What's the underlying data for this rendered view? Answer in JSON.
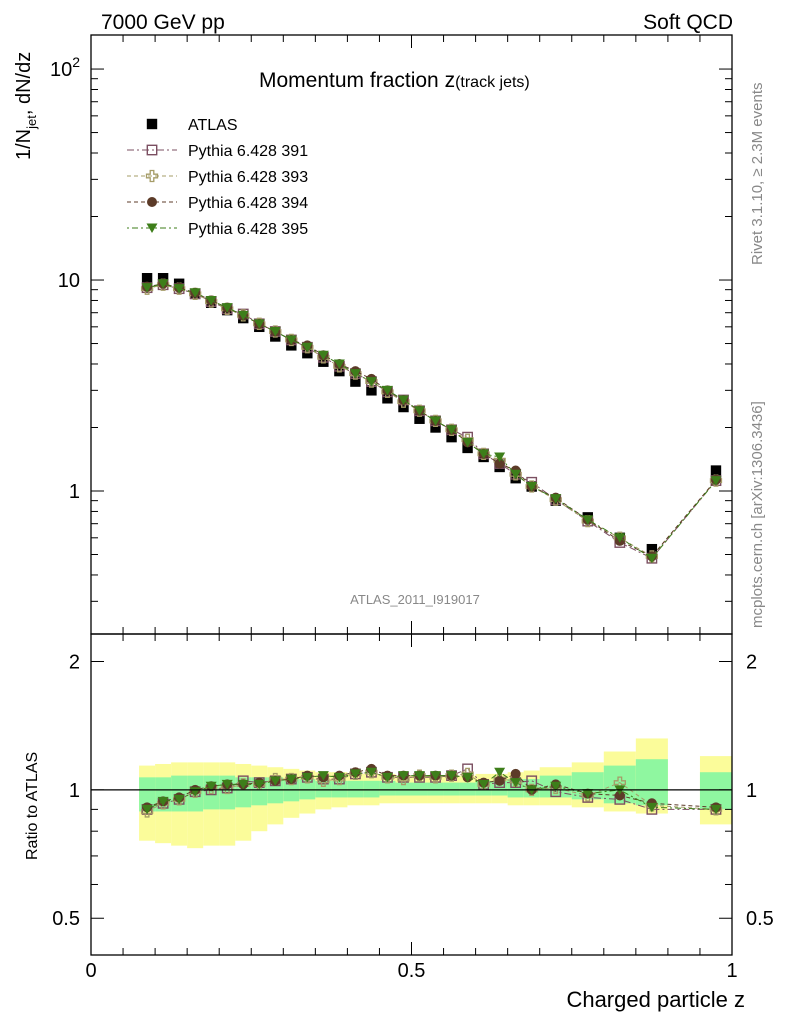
{
  "header": {
    "left": "7000 GeV pp",
    "right": "Soft QCD"
  },
  "side_labels": {
    "rivet": "Rivet 3.1.10, ≥ 2.3M events",
    "mcplots": "mcplots.cern.ch [arXiv:1306.3436]"
  },
  "watermark": "ATLAS_2011_I919017",
  "colors": {
    "atlas": "#000000",
    "p391": "#7b4f61",
    "p393": "#a59c67",
    "p394": "#5c3b28",
    "p395": "#3d7e1a",
    "band_inner": "#8ff7a0",
    "band_outer": "#fbfc9a"
  },
  "chart_data": [
    {
      "type": "scatter",
      "panel": "main",
      "title_main": "Momentum fraction z",
      "title_sub": "(track jets)",
      "ylabel_main": "1/N",
      "ylabel_sub": "jet",
      "ylabel_rest": ", dN/dz",
      "yscale": "log",
      "xlim": [
        0,
        1
      ],
      "ylim": [
        0.21,
        145
      ],
      "ytick_labels": [
        {
          "value": 100,
          "base": "10",
          "exp": "2"
        },
        {
          "value": 10,
          "base": "10",
          "exp": ""
        },
        {
          "value": 1,
          "base": "1",
          "exp": ""
        }
      ],
      "legend_position": "top-left",
      "x": [
        0.0875,
        0.1125,
        0.1375,
        0.1625,
        0.1875,
        0.2125,
        0.2375,
        0.2625,
        0.2875,
        0.3125,
        0.3375,
        0.3625,
        0.3875,
        0.4125,
        0.4375,
        0.4625,
        0.4875,
        0.5125,
        0.5375,
        0.5625,
        0.5875,
        0.6125,
        0.6375,
        0.6625,
        0.6875,
        0.725,
        0.775,
        0.825,
        0.875,
        0.975
      ],
      "series": [
        {
          "name": "ATLAS",
          "marker": "filled-square",
          "color_key": "atlas",
          "values": [
            10.2,
            10.2,
            9.6,
            8.6,
            7.8,
            7.2,
            6.6,
            6.0,
            5.4,
            4.9,
            4.5,
            4.1,
            3.7,
            3.3,
            3.0,
            2.75,
            2.5,
            2.2,
            2.0,
            1.8,
            1.6,
            1.45,
            1.3,
            1.15,
            1.05,
            0.9,
            0.75,
            0.6,
            0.53,
            1.25
          ]
        },
        {
          "name": "Pythia 6.428 391",
          "marker": "open-square",
          "color_key": "p391",
          "values": [
            9.2,
            9.5,
            9.1,
            8.6,
            7.9,
            7.3,
            6.9,
            6.2,
            5.7,
            5.2,
            4.8,
            4.3,
            3.9,
            3.6,
            3.3,
            2.95,
            2.7,
            2.4,
            2.15,
            1.95,
            1.8,
            1.5,
            1.35,
            1.2,
            1.1,
            0.91,
            0.72,
            0.57,
            0.48,
            1.12
          ]
        },
        {
          "name": "Pythia 6.428 393",
          "marker": "open-cross",
          "color_key": "p393",
          "values": [
            9.1,
            9.5,
            9.1,
            8.6,
            7.9,
            7.3,
            6.8,
            6.2,
            5.7,
            5.2,
            4.8,
            4.3,
            3.9,
            3.6,
            3.3,
            2.95,
            2.65,
            2.4,
            2.15,
            1.95,
            1.75,
            1.5,
            1.4,
            1.2,
            1.05,
            0.91,
            0.72,
            0.6,
            0.49,
            1.12
          ]
        },
        {
          "name": "Pythia 6.428 394",
          "marker": "filled-circle",
          "color_key": "p394",
          "values": [
            9.3,
            9.6,
            9.2,
            8.7,
            8.0,
            7.4,
            6.8,
            6.2,
            5.7,
            5.2,
            4.9,
            4.4,
            4.0,
            3.7,
            3.4,
            3.0,
            2.7,
            2.4,
            2.15,
            1.95,
            1.7,
            1.5,
            1.35,
            1.25,
            1.05,
            0.93,
            0.73,
            0.58,
            0.49,
            1.13
          ]
        },
        {
          "name": "Pythia 6.428 395",
          "marker": "filled-triangle-down",
          "color_key": "p395",
          "values": [
            9.2,
            9.6,
            9.1,
            8.7,
            8.0,
            7.4,
            6.8,
            6.2,
            5.7,
            5.2,
            4.8,
            4.4,
            4.0,
            3.6,
            3.3,
            3.0,
            2.7,
            2.4,
            2.15,
            1.95,
            1.7,
            1.5,
            1.45,
            1.2,
            1.05,
            0.92,
            0.73,
            0.6,
            0.48,
            1.12
          ]
        }
      ]
    },
    {
      "type": "scatter",
      "panel": "ratio",
      "ylabel": "Ratio to ATLAS",
      "xlabel": "Charged particle z",
      "yscale": "log",
      "xlim": [
        0,
        1
      ],
      "ylim": [
        0.41,
        2.32
      ],
      "ytick_labels": [
        "0.5",
        "1",
        "2"
      ],
      "xtick_labels": [
        "0",
        "0.5",
        "1"
      ],
      "reference_line": 1,
      "bands": [
        {
          "x0": 0.075,
          "x1": 0.1,
          "inner_lo": 0.89,
          "inner_hi": 1.07,
          "outer_lo": 0.76,
          "outer_hi": 1.14
        },
        {
          "x0": 0.1,
          "x1": 0.125,
          "inner_lo": 0.89,
          "inner_hi": 1.07,
          "outer_lo": 0.75,
          "outer_hi": 1.15
        },
        {
          "x0": 0.125,
          "x1": 0.15,
          "inner_lo": 0.89,
          "inner_hi": 1.08,
          "outer_lo": 0.74,
          "outer_hi": 1.16
        },
        {
          "x0": 0.15,
          "x1": 0.175,
          "inner_lo": 0.89,
          "inner_hi": 1.08,
          "outer_lo": 0.73,
          "outer_hi": 1.16
        },
        {
          "x0": 0.175,
          "x1": 0.2,
          "inner_lo": 0.9,
          "inner_hi": 1.08,
          "outer_lo": 0.74,
          "outer_hi": 1.16
        },
        {
          "x0": 0.2,
          "x1": 0.225,
          "inner_lo": 0.9,
          "inner_hi": 1.08,
          "outer_lo": 0.74,
          "outer_hi": 1.16
        },
        {
          "x0": 0.225,
          "x1": 0.25,
          "inner_lo": 0.91,
          "inner_hi": 1.07,
          "outer_lo": 0.76,
          "outer_hi": 1.15
        },
        {
          "x0": 0.25,
          "x1": 0.275,
          "inner_lo": 0.92,
          "inner_hi": 1.07,
          "outer_lo": 0.8,
          "outer_hi": 1.14
        },
        {
          "x0": 0.275,
          "x1": 0.3,
          "inner_lo": 0.93,
          "inner_hi": 1.07,
          "outer_lo": 0.83,
          "outer_hi": 1.13
        },
        {
          "x0": 0.3,
          "x1": 0.325,
          "inner_lo": 0.94,
          "inner_hi": 1.06,
          "outer_lo": 0.86,
          "outer_hi": 1.12
        },
        {
          "x0": 0.325,
          "x1": 0.35,
          "inner_lo": 0.95,
          "inner_hi": 1.06,
          "outer_lo": 0.88,
          "outer_hi": 1.11
        },
        {
          "x0": 0.35,
          "x1": 0.375,
          "inner_lo": 0.96,
          "inner_hi": 1.05,
          "outer_lo": 0.9,
          "outer_hi": 1.1
        },
        {
          "x0": 0.375,
          "x1": 0.4,
          "inner_lo": 0.96,
          "inner_hi": 1.05,
          "outer_lo": 0.91,
          "outer_hi": 1.1
        },
        {
          "x0": 0.4,
          "x1": 0.425,
          "inner_lo": 0.96,
          "inner_hi": 1.05,
          "outer_lo": 0.92,
          "outer_hi": 1.09
        },
        {
          "x0": 0.425,
          "x1": 0.45,
          "inner_lo": 0.96,
          "inner_hi": 1.05,
          "outer_lo": 0.92,
          "outer_hi": 1.09
        },
        {
          "x0": 0.45,
          "x1": 0.475,
          "inner_lo": 0.97,
          "inner_hi": 1.05,
          "outer_lo": 0.93,
          "outer_hi": 1.09
        },
        {
          "x0": 0.475,
          "x1": 0.5,
          "inner_lo": 0.97,
          "inner_hi": 1.04,
          "outer_lo": 0.93,
          "outer_hi": 1.08
        },
        {
          "x0": 0.5,
          "x1": 0.525,
          "inner_lo": 0.97,
          "inner_hi": 1.04,
          "outer_lo": 0.93,
          "outer_hi": 1.08
        },
        {
          "x0": 0.525,
          "x1": 0.55,
          "inner_lo": 0.97,
          "inner_hi": 1.04,
          "outer_lo": 0.93,
          "outer_hi": 1.08
        },
        {
          "x0": 0.55,
          "x1": 0.575,
          "inner_lo": 0.97,
          "inner_hi": 1.04,
          "outer_lo": 0.93,
          "outer_hi": 1.08
        },
        {
          "x0": 0.575,
          "x1": 0.6,
          "inner_lo": 0.97,
          "inner_hi": 1.04,
          "outer_lo": 0.93,
          "outer_hi": 1.08
        },
        {
          "x0": 0.6,
          "x1": 0.625,
          "inner_lo": 0.97,
          "inner_hi": 1.05,
          "outer_lo": 0.93,
          "outer_hi": 1.09
        },
        {
          "x0": 0.625,
          "x1": 0.65,
          "inner_lo": 0.97,
          "inner_hi": 1.05,
          "outer_lo": 0.93,
          "outer_hi": 1.09
        },
        {
          "x0": 0.65,
          "x1": 0.675,
          "inner_lo": 0.96,
          "inner_hi": 1.06,
          "outer_lo": 0.92,
          "outer_hi": 1.1
        },
        {
          "x0": 0.675,
          "x1": 0.7,
          "inner_lo": 0.96,
          "inner_hi": 1.06,
          "outer_lo": 0.92,
          "outer_hi": 1.11
        },
        {
          "x0": 0.7,
          "x1": 0.75,
          "inner_lo": 0.96,
          "inner_hi": 1.08,
          "outer_lo": 0.92,
          "outer_hi": 1.13
        },
        {
          "x0": 0.75,
          "x1": 0.8,
          "inner_lo": 0.95,
          "inner_hi": 1.1,
          "outer_lo": 0.91,
          "outer_hi": 1.16
        },
        {
          "x0": 0.8,
          "x1": 0.85,
          "inner_lo": 0.93,
          "inner_hi": 1.14,
          "outer_lo": 0.89,
          "outer_hi": 1.23
        },
        {
          "x0": 0.85,
          "x1": 0.9,
          "inner_lo": 0.92,
          "inner_hi": 1.18,
          "outer_lo": 0.88,
          "outer_hi": 1.32
        },
        {
          "x0": 0.95,
          "x1": 1.0,
          "inner_lo": 0.9,
          "inner_hi": 1.1,
          "outer_lo": 0.83,
          "outer_hi": 1.2
        }
      ],
      "series": [
        {
          "name": "Pythia 6.428 391",
          "color_key": "p391",
          "marker": "open-square",
          "values": [
            0.9,
            0.93,
            0.95,
            0.99,
            1.0,
            1.01,
            1.05,
            1.04,
            1.05,
            1.06,
            1.07,
            1.06,
            1.06,
            1.09,
            1.1,
            1.07,
            1.07,
            1.07,
            1.07,
            1.08,
            1.12,
            1.03,
            1.04,
            1.04,
            1.05,
            0.99,
            0.96,
            0.95,
            0.9,
            0.9
          ]
        },
        {
          "name": "Pythia 6.428 393",
          "color_key": "p393",
          "marker": "open-cross",
          "values": [
            0.89,
            0.93,
            0.95,
            0.99,
            1.01,
            1.01,
            1.03,
            1.03,
            1.06,
            1.06,
            1.07,
            1.05,
            1.06,
            1.09,
            1.1,
            1.07,
            1.06,
            1.08,
            1.07,
            1.08,
            1.09,
            1.03,
            1.06,
            1.05,
            1.0,
            1.01,
            0.97,
            1.04,
            0.92,
            0.9
          ]
        },
        {
          "name": "Pythia 6.428 394",
          "color_key": "p394",
          "marker": "filled-circle",
          "values": [
            0.91,
            0.94,
            0.96,
            1.0,
            1.02,
            1.03,
            1.03,
            1.04,
            1.05,
            1.06,
            1.08,
            1.07,
            1.08,
            1.1,
            1.12,
            1.08,
            1.08,
            1.08,
            1.08,
            1.08,
            1.07,
            1.04,
            1.05,
            1.09,
            1.0,
            1.03,
            0.98,
            0.97,
            0.93,
            0.91
          ]
        },
        {
          "name": "Pythia 6.428 395",
          "color_key": "p395",
          "marker": "filled-triangle-down",
          "values": [
            0.9,
            0.94,
            0.95,
            0.99,
            1.02,
            1.03,
            1.03,
            1.03,
            1.05,
            1.06,
            1.07,
            1.08,
            1.07,
            1.09,
            1.1,
            1.07,
            1.08,
            1.08,
            1.08,
            1.08,
            1.07,
            1.03,
            1.1,
            1.04,
            1.0,
            1.02,
            0.98,
            1.0,
            0.91,
            0.9
          ]
        }
      ]
    }
  ]
}
